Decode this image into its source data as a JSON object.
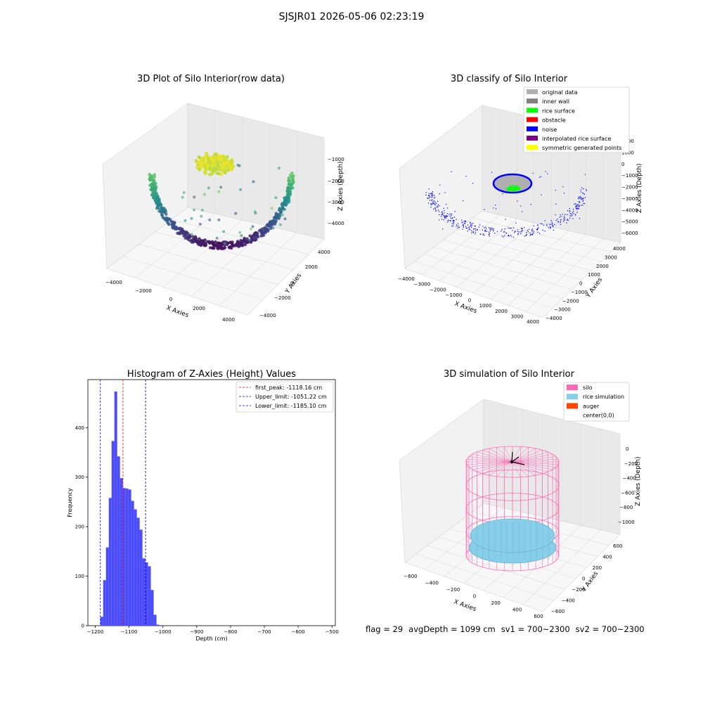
{
  "figure": {
    "suptitle": "SJSJR01 2026-05-06 02:23:19"
  },
  "status_line": {
    "flag": "flag = 29",
    "avg_depth": "avgDepth = 1099 cm",
    "sv1": "sv1 = 700~2300",
    "sv2": "sv2 = 700~2300"
  },
  "colors": {
    "hist_bar": "#4c4cff",
    "first_peak": "#ff0000",
    "upper_limit": "#00008b",
    "lower_limit": "#0000ff",
    "silo": "#ff69b4",
    "rice": "#87ceeb",
    "auger": "#ff4500",
    "original": "#b0b0b0",
    "inner_wall": "#808080",
    "rice_surface": "#00ff00",
    "obstacle": "#ff0000",
    "noise": "#0000ff",
    "interp": "#800080",
    "symmetric": "#ffff00"
  },
  "chart_data": [
    {
      "type": "scatter",
      "title": "3D Plot of Silo Interior(row data)",
      "xlabel": "X Axies",
      "ylabel": "Y Axies",
      "zlabel": "Z Axies (Depth)",
      "xticks": [
        "−4000",
        "−2000",
        "0",
        "2000",
        "4000"
      ],
      "yticks": [
        "−4000",
        "−2000",
        "0",
        "2000",
        "4000"
      ],
      "zticks": [
        "−1000",
        "−2000",
        "−3000",
        "−4000"
      ],
      "xlim": [
        -4000,
        4000
      ],
      "ylim": [
        -4000,
        4000
      ],
      "zlim": [
        -4500,
        -500
      ],
      "colormap": "viridis",
      "grid": true
    },
    {
      "type": "scatter",
      "title": "3D classify of Silo Interior",
      "xlabel": "X Axies",
      "ylabel": "Y Axies",
      "zlabel": "Z Axies (Depth)",
      "xticks": [
        "−4000",
        "−3000",
        "−2000",
        "−1000",
        "0",
        "1000",
        "2000",
        "3000",
        "4000"
      ],
      "yticks": [
        "4000",
        "3000",
        "2000",
        "1000",
        "0",
        "−1000",
        "−2000",
        "−3000",
        "−4000"
      ],
      "zticks": [
        "2000",
        "1000",
        "0",
        "−1000",
        "−2000",
        "−3000",
        "−4000",
        "−5000",
        "−6000"
      ],
      "legend": [
        {
          "label": "original data",
          "color": "#b0b0b0"
        },
        {
          "label": "inner wall",
          "color": "#808080"
        },
        {
          "label": "rice surface",
          "color": "#00ff00"
        },
        {
          "label": "obstacle",
          "color": "#ff0000"
        },
        {
          "label": "noise",
          "color": "#0000ff"
        },
        {
          "label": "interpolated rice surface",
          "color": "#800080"
        },
        {
          "label": "symmetric generated points",
          "color": "#ffff00"
        }
      ],
      "legend_position": "top-right",
      "grid": true
    },
    {
      "type": "bar",
      "title": "Histogram of Z-Axies (Height) Values",
      "xlabel": "Depth (cm)",
      "ylabel": "Frequency",
      "xlim": [
        -1222,
        -490
      ],
      "ylim": [
        0,
        497
      ],
      "xticks": [
        -1200,
        -1100,
        -1000,
        -900,
        -800,
        -700,
        -600,
        -500
      ],
      "yticks": [
        0,
        100,
        200,
        300,
        400
      ],
      "bin_width": 8.3,
      "bins": [
        {
          "x0": -1185.1,
          "value": 18
        },
        {
          "x0": -1176.8,
          "value": 92
        },
        {
          "x0": -1168.5,
          "value": 158
        },
        {
          "x0": -1160.2,
          "value": 258
        },
        {
          "x0": -1151.9,
          "value": 373
        },
        {
          "x0": -1143.6,
          "value": 473
        },
        {
          "x0": -1135.3,
          "value": 342
        },
        {
          "x0": -1127.0,
          "value": 298
        },
        {
          "x0": -1118.7,
          "value": 278
        },
        {
          "x0": -1110.4,
          "value": 277
        },
        {
          "x0": -1102.1,
          "value": 275
        },
        {
          "x0": -1093.8,
          "value": 252
        },
        {
          "x0": -1085.5,
          "value": 235
        },
        {
          "x0": -1077.2,
          "value": 218
        },
        {
          "x0": -1068.9,
          "value": 194
        },
        {
          "x0": -1060.6,
          "value": 136
        },
        {
          "x0": -1052.3,
          "value": 128
        },
        {
          "x0": -1044.0,
          "value": 120
        },
        {
          "x0": -1035.7,
          "value": 72
        },
        {
          "x0": -1027.4,
          "value": 22
        },
        {
          "x0": -1019.1,
          "value": 2
        },
        {
          "x0": -1010.8,
          "value": 1
        },
        {
          "x0": -960.0,
          "value": 1
        },
        {
          "x0": -951.7,
          "value": 1
        },
        {
          "x0": -893.0,
          "value": 1
        },
        {
          "x0": -527.0,
          "value": 1
        }
      ],
      "lines": [
        {
          "label": "first_peak: -1118.16 cm",
          "x": -1118.16,
          "color": "#ff0000"
        },
        {
          "label": "Upper_limit: -1051.22 cm",
          "x": -1051.22,
          "color": "#00008b"
        },
        {
          "label": "Lower_limit: -1185.10 cm",
          "x": -1185.1,
          "color": "#0000ff"
        }
      ],
      "legend_position": "top-right"
    },
    {
      "type": "surface",
      "title": "3D simulation of Silo Interior",
      "xlabel": "X Axies",
      "ylabel": "Y Axies",
      "zlabel": "Z Axies (Depth)",
      "xticks": [
        "−600",
        "−400",
        "−200",
        "0",
        "200",
        "400",
        "600"
      ],
      "yticks": [
        "600",
        "400",
        "200",
        "0",
        "−200",
        "−400",
        "−600"
      ],
      "zticks": [
        "0",
        "−200",
        "−400",
        "−600",
        "−800",
        "−1000"
      ],
      "legend": [
        {
          "label": "silo",
          "color": "#ff69b4"
        },
        {
          "label": "rice simulation",
          "color": "#87ceeb"
        },
        {
          "label": "auger",
          "color": "#ff4500"
        },
        {
          "label": "center(0,0)",
          "color": ""
        }
      ],
      "legend_position": "top-right"
    }
  ]
}
